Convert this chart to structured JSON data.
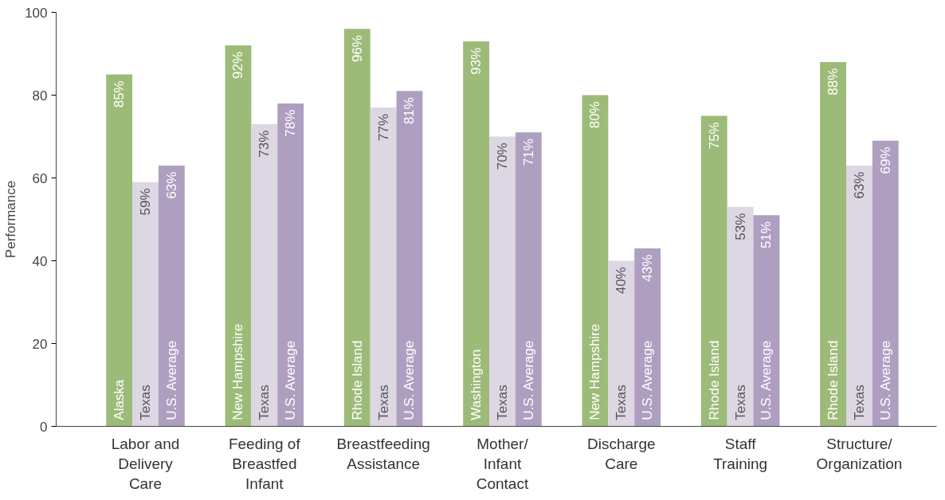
{
  "chart_data": {
    "type": "bar",
    "ylabel": "Performance",
    "categories": [
      "Labor and Delivery Care",
      "Feeding of Breastfed Infant",
      "Breastfeeding Assistance",
      "Mother/ Infant Contact",
      "Discharge Care",
      "Staff Training",
      "Structure/ Organization"
    ],
    "series": [
      {
        "color": "#9dbb78",
        "values": [
          85,
          92,
          96,
          93,
          80,
          75,
          88
        ],
        "value_labels": [
          "85%",
          "92%",
          "96%",
          "93%",
          "80%",
          "75%",
          "88%"
        ]
      },
      {
        "name": "Texas",
        "color": "#ddd6e3",
        "values": [
          59,
          73,
          77,
          70,
          40,
          53,
          63
        ],
        "value_labels": [
          "59%",
          "73%",
          "77%",
          "70%",
          "40%",
          "53%",
          "63%"
        ]
      },
      {
        "name": "U.S. Average",
        "color": "#ae9fc0",
        "values": [
          63,
          78,
          81,
          71,
          43,
          51,
          69
        ],
        "value_labels": [
          "63%",
          "78%",
          "81%",
          "71%",
          "43%",
          "51%",
          "69%"
        ]
      }
    ],
    "annotations": [
      "Alaska",
      "New Hampshire",
      "Rhode Island",
      "Washington",
      "New Hampshire",
      "Rhode Island",
      "Rhode Island"
    ],
    "ylim": [
      0,
      100
    ],
    "yticks": [
      0,
      20,
      40,
      60,
      80,
      100
    ],
    "grid": false
  }
}
